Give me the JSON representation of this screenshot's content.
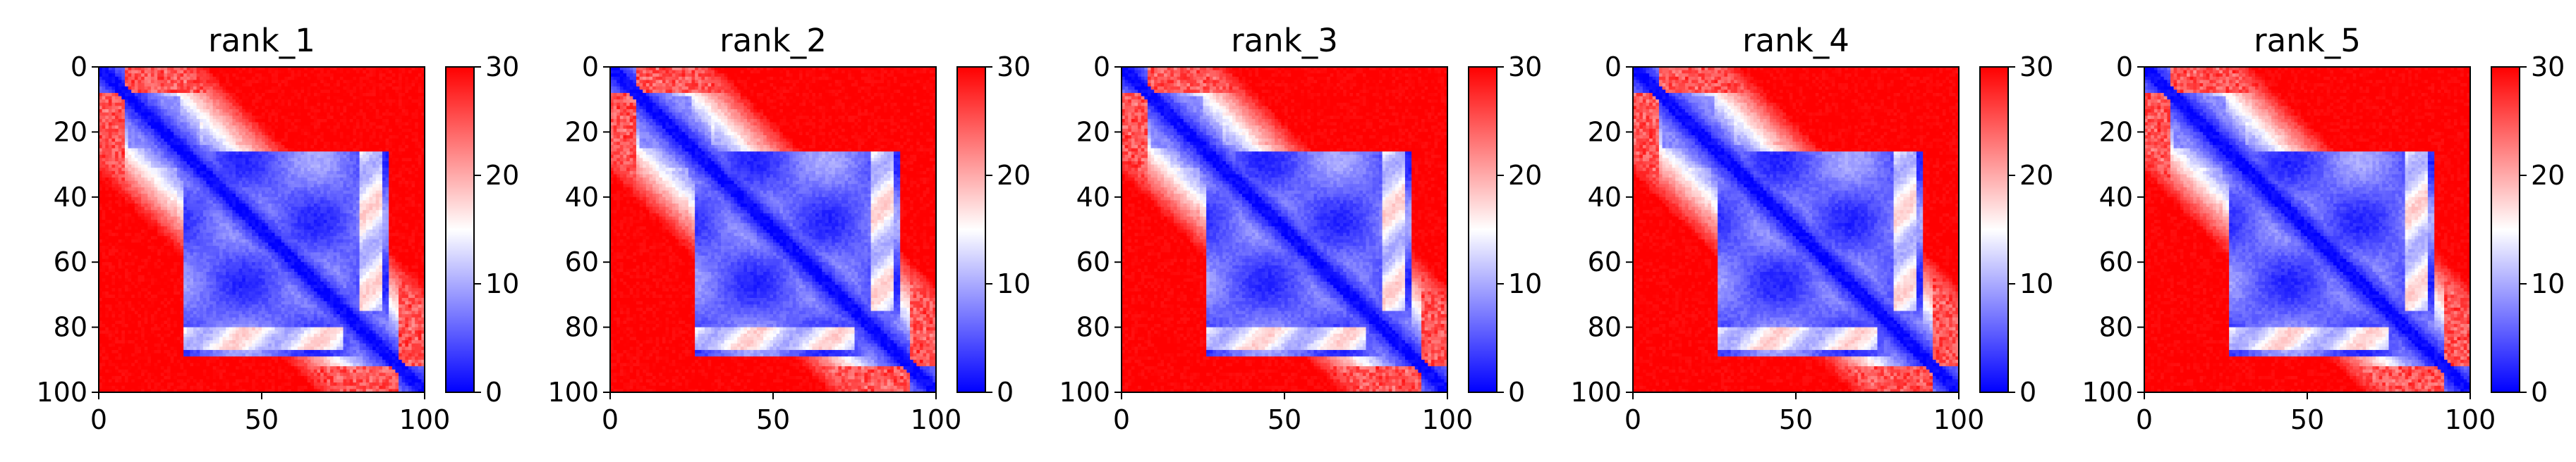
{
  "chart_data": [
    {
      "type": "heatmap",
      "title": "rank_1",
      "x_ticks": [
        "0",
        "50",
        "100"
      ],
      "y_ticks": [
        "0",
        "20",
        "40",
        "60",
        "80",
        "100"
      ],
      "xlim": [
        0,
        100
      ],
      "ylim": [
        100,
        0
      ],
      "colorbar": {
        "ticks": [
          "0",
          "10",
          "20",
          "30"
        ],
        "range": [
          0,
          30
        ],
        "colormap": [
          "#0000ff",
          "#ffffff",
          "#ff0000"
        ]
      }
    },
    {
      "type": "heatmap",
      "title": "rank_2",
      "x_ticks": [
        "0",
        "50",
        "100"
      ],
      "y_ticks": [
        "0",
        "20",
        "40",
        "60",
        "80",
        "100"
      ],
      "xlim": [
        0,
        100
      ],
      "ylim": [
        100,
        0
      ],
      "colorbar": {
        "ticks": [
          "0",
          "10",
          "20",
          "30"
        ],
        "range": [
          0,
          30
        ],
        "colormap": [
          "#0000ff",
          "#ffffff",
          "#ff0000"
        ]
      }
    },
    {
      "type": "heatmap",
      "title": "rank_3",
      "x_ticks": [
        "0",
        "50",
        "100"
      ],
      "y_ticks": [
        "0",
        "20",
        "40",
        "60",
        "80",
        "100"
      ],
      "xlim": [
        0,
        100
      ],
      "ylim": [
        100,
        0
      ],
      "colorbar": {
        "ticks": [
          "0",
          "10",
          "20",
          "30"
        ],
        "range": [
          0,
          30
        ],
        "colormap": [
          "#0000ff",
          "#ffffff",
          "#ff0000"
        ]
      }
    },
    {
      "type": "heatmap",
      "title": "rank_4",
      "x_ticks": [
        "0",
        "50",
        "100"
      ],
      "y_ticks": [
        "0",
        "20",
        "40",
        "60",
        "80",
        "100"
      ],
      "xlim": [
        0,
        100
      ],
      "ylim": [
        100,
        0
      ],
      "colorbar": {
        "ticks": [
          "0",
          "10",
          "20",
          "30"
        ],
        "range": [
          0,
          30
        ],
        "colormap": [
          "#0000ff",
          "#ffffff",
          "#ff0000"
        ]
      }
    },
    {
      "type": "heatmap",
      "title": "rank_5",
      "x_ticks": [
        "0",
        "50",
        "100"
      ],
      "y_ticks": [
        "0",
        "20",
        "40",
        "60",
        "80",
        "100"
      ],
      "xlim": [
        0,
        100
      ],
      "ylim": [
        100,
        0
      ],
      "colorbar": {
        "ticks": [
          "0",
          "10",
          "20",
          "30"
        ],
        "range": [
          0,
          30
        ],
        "colormap": [
          "#0000ff",
          "#ffffff",
          "#ff0000"
        ]
      }
    }
  ]
}
